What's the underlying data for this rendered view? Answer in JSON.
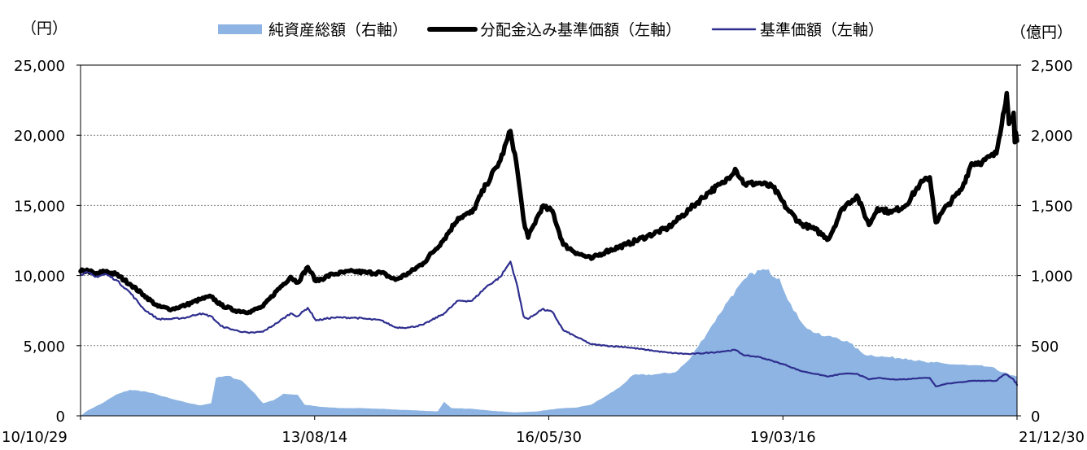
{
  "chart_data": {
    "type": "line",
    "title": "",
    "unit_left": "（円）",
    "unit_right": "（億円）",
    "x_tick_labels": [
      "10/10/29",
      "13/08/14",
      "16/05/30",
      "19/03/16",
      "21/12/30"
    ],
    "y_left_ticks": [
      0,
      5000,
      10000,
      15000,
      20000,
      25000
    ],
    "y_left_tick_labels": [
      "0",
      "5,000",
      "10,000",
      "15,000",
      "20,000",
      "25,000"
    ],
    "y_right_ticks": [
      0,
      500,
      1000,
      1500,
      2000,
      2500
    ],
    "y_right_tick_labels": [
      "0",
      "500",
      "1,000",
      "1,500",
      "2,000",
      "2,500"
    ],
    "ylim_left": [
      0,
      25000
    ],
    "ylim_right": [
      0,
      2500
    ],
    "grid": true,
    "legend_position": "top",
    "series": [
      {
        "name": "純資産総額（右軸）",
        "axis": "right",
        "kind": "area",
        "color": "#8db4e2",
        "points": [
          [
            "2010-10-29",
            0
          ],
          [
            "2010-12-01",
            40
          ],
          [
            "2011-02-01",
            90
          ],
          [
            "2011-04-01",
            150
          ],
          [
            "2011-06-01",
            185
          ],
          [
            "2011-08-01",
            175
          ],
          [
            "2011-10-01",
            150
          ],
          [
            "2011-12-01",
            120
          ],
          [
            "2012-02-01",
            95
          ],
          [
            "2012-04-01",
            75
          ],
          [
            "2012-05-20",
            90
          ],
          [
            "2012-06-10",
            270
          ],
          [
            "2012-08-01",
            285
          ],
          [
            "2012-10-01",
            250
          ],
          [
            "2012-11-20",
            170
          ],
          [
            "2013-01-01",
            90
          ],
          [
            "2013-02-15",
            110
          ],
          [
            "2013-04-01",
            158
          ],
          [
            "2013-06-01",
            150
          ],
          [
            "2013-07-01",
            80
          ],
          [
            "2013-09-01",
            65
          ],
          [
            "2013-12-01",
            55
          ],
          [
            "2014-03-01",
            55
          ],
          [
            "2014-06-01",
            50
          ],
          [
            "2014-09-01",
            42
          ],
          [
            "2014-12-01",
            36
          ],
          [
            "2015-02-01",
            32
          ],
          [
            "2015-03-01",
            100
          ],
          [
            "2015-04-01",
            55
          ],
          [
            "2015-07-01",
            50
          ],
          [
            "2015-10-01",
            35
          ],
          [
            "2016-01-01",
            25
          ],
          [
            "2016-04-01",
            30
          ],
          [
            "2016-07-01",
            50
          ],
          [
            "2016-10-01",
            60
          ],
          [
            "2016-12-01",
            80
          ],
          [
            "2017-02-01",
            140
          ],
          [
            "2017-04-01",
            200
          ],
          [
            "2017-06-01",
            290
          ],
          [
            "2017-09-01",
            295
          ],
          [
            "2017-12-01",
            310
          ],
          [
            "2018-02-01",
            400
          ],
          [
            "2018-05-01",
            620
          ],
          [
            "2018-08-01",
            850
          ],
          [
            "2018-11-01",
            1020
          ],
          [
            "2019-01-01",
            1040
          ],
          [
            "2019-03-01",
            980
          ],
          [
            "2019-05-01",
            750
          ],
          [
            "2019-07-01",
            620
          ],
          [
            "2019-09-01",
            570
          ],
          [
            "2019-11-01",
            560
          ],
          [
            "2020-01-01",
            520
          ],
          [
            "2020-03-01",
            440
          ],
          [
            "2020-06-01",
            420
          ],
          [
            "2020-09-01",
            410
          ],
          [
            "2020-12-01",
            380
          ],
          [
            "2021-01-01",
            380
          ],
          [
            "2021-03-01",
            370
          ],
          [
            "2021-06-01",
            360
          ],
          [
            "2021-09-01",
            350
          ],
          [
            "2021-12-01",
            290
          ],
          [
            "2021-12-30",
            280
          ]
        ]
      },
      {
        "name": "分配金込み基準価額（左軸）",
        "axis": "left",
        "kind": "line",
        "color": "#000000",
        "points": [
          [
            "2010-10-29",
            10300
          ],
          [
            "2010-12-01",
            10350
          ],
          [
            "2011-01-01",
            10100
          ],
          [
            "2011-02-15",
            10300
          ],
          [
            "2011-04-01",
            10100
          ],
          [
            "2011-06-01",
            9400
          ],
          [
            "2011-08-01",
            8600
          ],
          [
            "2011-10-01",
            7800
          ],
          [
            "2011-12-01",
            7600
          ],
          [
            "2012-02-01",
            7900
          ],
          [
            "2012-04-01",
            8300
          ],
          [
            "2012-05-20",
            8500
          ],
          [
            "2012-07-01",
            7900
          ],
          [
            "2012-09-01",
            7500
          ],
          [
            "2012-11-01",
            7400
          ],
          [
            "2013-01-01",
            7800
          ],
          [
            "2013-03-01",
            8900
          ],
          [
            "2013-05-01",
            9900
          ],
          [
            "2013-06-01",
            9500
          ],
          [
            "2013-07-15",
            10600
          ],
          [
            "2013-08-20",
            9600
          ],
          [
            "2013-11-01",
            10100
          ],
          [
            "2014-02-01",
            10300
          ],
          [
            "2014-04-01",
            10200
          ],
          [
            "2014-06-01",
            10200
          ],
          [
            "2014-08-01",
            9700
          ],
          [
            "2014-10-01",
            10200
          ],
          [
            "2014-12-01",
            10900
          ],
          [
            "2015-03-01",
            12600
          ],
          [
            "2015-05-01",
            14100
          ],
          [
            "2015-07-01",
            14500
          ],
          [
            "2015-09-01",
            16500
          ],
          [
            "2015-11-01",
            18200
          ],
          [
            "2015-12-15",
            20300
          ],
          [
            "2016-01-10",
            18000
          ],
          [
            "2016-02-10",
            14000
          ],
          [
            "2016-03-01",
            12700
          ],
          [
            "2016-05-01",
            14900
          ],
          [
            "2016-06-15",
            14600
          ],
          [
            "2016-08-01",
            12200
          ],
          [
            "2016-10-01",
            11600
          ],
          [
            "2016-12-01",
            11200
          ],
          [
            "2017-02-01",
            11700
          ],
          [
            "2017-05-01",
            12200
          ],
          [
            "2017-08-01",
            12800
          ],
          [
            "2017-11-01",
            13400
          ],
          [
            "2018-02-01",
            14700
          ],
          [
            "2018-05-01",
            16000
          ],
          [
            "2018-07-01",
            16600
          ],
          [
            "2018-08-20",
            17600
          ],
          [
            "2018-10-01",
            16500
          ],
          [
            "2018-12-01",
            16600
          ],
          [
            "2019-02-01",
            16300
          ],
          [
            "2019-04-01",
            14800
          ],
          [
            "2019-06-01",
            13700
          ],
          [
            "2019-08-01",
            13300
          ],
          [
            "2019-10-01",
            12600
          ],
          [
            "2019-12-01",
            14800
          ],
          [
            "2020-02-01",
            15700
          ],
          [
            "2020-03-25",
            13600
          ],
          [
            "2020-05-01",
            14800
          ],
          [
            "2020-07-01",
            14500
          ],
          [
            "2020-09-01",
            15000
          ],
          [
            "2020-11-01",
            16500
          ],
          [
            "2020-12-15",
            17000
          ],
          [
            "2021-01-10",
            13800
          ],
          [
            "2021-03-01",
            15000
          ],
          [
            "2021-05-01",
            16100
          ],
          [
            "2021-06-15",
            18000
          ],
          [
            "2021-08-01",
            18100
          ],
          [
            "2021-10-01",
            18700
          ],
          [
            "2021-10-30",
            21500
          ],
          [
            "2021-11-15",
            23000
          ],
          [
            "2021-11-25",
            20800
          ],
          [
            "2021-12-05",
            21000
          ],
          [
            "2021-12-15",
            21600
          ],
          [
            "2021-12-20",
            19500
          ],
          [
            "2021-12-25",
            20200
          ],
          [
            "2021-12-30",
            19600
          ]
        ]
      },
      {
        "name": "基準価額（左軸）",
        "axis": "left",
        "kind": "line",
        "color": "#2e2e8f",
        "points": [
          [
            "2010-10-29",
            10100
          ],
          [
            "2010-12-01",
            10200
          ],
          [
            "2011-01-01",
            9900
          ],
          [
            "2011-02-15",
            10100
          ],
          [
            "2011-04-01",
            9700
          ],
          [
            "2011-06-01",
            8800
          ],
          [
            "2011-08-01",
            7600
          ],
          [
            "2011-10-01",
            6900
          ],
          [
            "2011-12-01",
            6900
          ],
          [
            "2012-02-01",
            7000
          ],
          [
            "2012-04-01",
            7300
          ],
          [
            "2012-05-20",
            7100
          ],
          [
            "2012-07-01",
            6400
          ],
          [
            "2012-09-01",
            6100
          ],
          [
            "2012-11-01",
            5900
          ],
          [
            "2013-01-01",
            6000
          ],
          [
            "2013-03-01",
            6600
          ],
          [
            "2013-05-01",
            7300
          ],
          [
            "2013-06-01",
            7100
          ],
          [
            "2013-07-15",
            7700
          ],
          [
            "2013-08-20",
            6800
          ],
          [
            "2013-11-01",
            7000
          ],
          [
            "2014-02-01",
            7000
          ],
          [
            "2014-04-01",
            6900
          ],
          [
            "2014-06-01",
            6800
          ],
          [
            "2014-08-01",
            6300
          ],
          [
            "2014-10-01",
            6300
          ],
          [
            "2014-12-01",
            6500
          ],
          [
            "2015-03-01",
            7300
          ],
          [
            "2015-05-01",
            8200
          ],
          [
            "2015-07-01",
            8200
          ],
          [
            "2015-09-01",
            9200
          ],
          [
            "2015-11-01",
            9900
          ],
          [
            "2015-12-15",
            11000
          ],
          [
            "2016-01-10",
            9500
          ],
          [
            "2016-02-10",
            7100
          ],
          [
            "2016-03-01",
            6900
          ],
          [
            "2016-05-01",
            7600
          ],
          [
            "2016-06-15",
            7400
          ],
          [
            "2016-08-01",
            6100
          ],
          [
            "2016-10-01",
            5600
          ],
          [
            "2016-12-01",
            5100
          ],
          [
            "2017-02-01",
            5000
          ],
          [
            "2017-05-01",
            4900
          ],
          [
            "2017-08-01",
            4700
          ],
          [
            "2017-11-01",
            4500
          ],
          [
            "2018-02-01",
            4400
          ],
          [
            "2018-05-01",
            4500
          ],
          [
            "2018-07-01",
            4600
          ],
          [
            "2018-08-20",
            4700
          ],
          [
            "2018-10-01",
            4300
          ],
          [
            "2018-12-01",
            4200
          ],
          [
            "2019-02-01",
            3900
          ],
          [
            "2019-04-01",
            3600
          ],
          [
            "2019-06-01",
            3200
          ],
          [
            "2019-08-01",
            3000
          ],
          [
            "2019-10-01",
            2800
          ],
          [
            "2019-12-01",
            3000
          ],
          [
            "2020-02-01",
            3000
          ],
          [
            "2020-03-25",
            2600
          ],
          [
            "2020-05-01",
            2700
          ],
          [
            "2020-07-01",
            2600
          ],
          [
            "2020-09-01",
            2600
          ],
          [
            "2020-11-01",
            2700
          ],
          [
            "2020-12-15",
            2700
          ],
          [
            "2021-01-10",
            2100
          ],
          [
            "2021-03-01",
            2300
          ],
          [
            "2021-05-01",
            2400
          ],
          [
            "2021-06-15",
            2500
          ],
          [
            "2021-08-01",
            2500
          ],
          [
            "2021-10-01",
            2500
          ],
          [
            "2021-10-30",
            2900
          ],
          [
            "2021-11-15",
            2950
          ],
          [
            "2021-11-25",
            2800
          ],
          [
            "2021-12-05",
            2700
          ],
          [
            "2021-12-15",
            2600
          ],
          [
            "2021-12-20",
            2400
          ],
          [
            "2021-12-25",
            2400
          ],
          [
            "2021-12-30",
            2200
          ]
        ]
      }
    ]
  }
}
